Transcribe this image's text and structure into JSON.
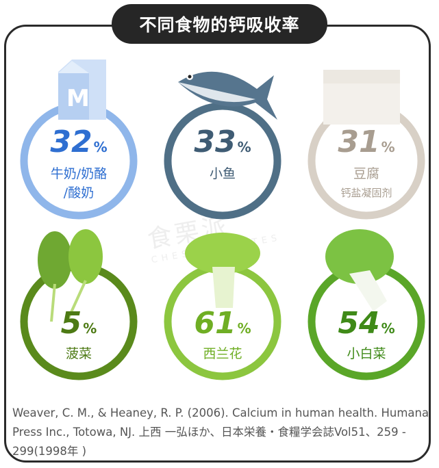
{
  "title": "不同食物的钙吸收率",
  "watermark": {
    "cn": "食栗派",
    "en": "CHESTNUTMATES"
  },
  "items": [
    {
      "value": "32",
      "unit": "%",
      "label": "牛奶/奶酪",
      "label2": "/酸奶",
      "color": "#8fb6ea",
      "text_color": "#2f6fd1",
      "icon": "milk-carton-icon"
    },
    {
      "value": "33",
      "unit": "%",
      "label": "小鱼",
      "label2": "",
      "color": "#4f6f86",
      "text_color": "#3f5c74",
      "icon": "fish-icon"
    },
    {
      "value": "31",
      "unit": "%",
      "label": "豆腐",
      "label2": "钙盐凝固剂",
      "color": "#d8d0c6",
      "text_color": "#a89d90",
      "icon": "tofu-icon"
    },
    {
      "value": "5",
      "unit": "%",
      "label": "菠菜",
      "label2": "",
      "color": "#5a8a1c",
      "text_color": "#4d7a14",
      "icon": "spinach-icon"
    },
    {
      "value": "61",
      "unit": "%",
      "label": "西兰花",
      "label2": "",
      "color": "#8cc63f",
      "text_color": "#6fae24",
      "icon": "broccoli-icon"
    },
    {
      "value": "54",
      "unit": "%",
      "label": "小白菜",
      "label2": "",
      "color": "#5aa628",
      "text_color": "#3f8a18",
      "icon": "bok-choy-icon"
    }
  ],
  "reference": "Weaver, C. M., & Heaney, R. P. (2006). Calcium in human health. Humana Press Inc., Totowa, NJ. 上西 一弘ほか、日本栄養・食糧学会誌Vol51、259 - 299(1998年 )"
}
